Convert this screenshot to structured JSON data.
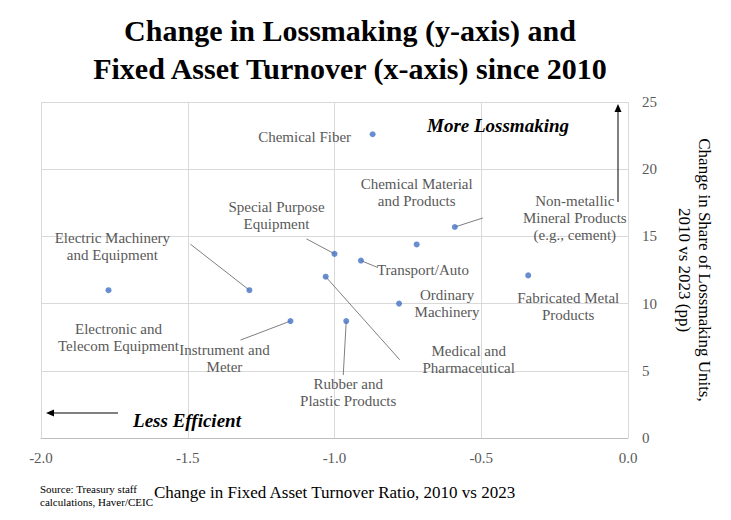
{
  "chart_data": {
    "type": "scatter",
    "title": "Change in Lossmaking (y-axis) and\nFixed Asset Turnover (x-axis) since 2010",
    "x_label": "Change in Fixed Asset Turnover Ratio, 2010 vs 2023",
    "y_label": "Change in Share of Lossmaking Units,\n2010 vs 2023 (pp)",
    "point_labels": [
      "Chemical Fiber",
      "Chemical Material\nand Products",
      "Non-metallic\nMineral Products\n(e.g., cement)",
      "Special Purpose\nEquipment",
      "Transport/Auto",
      "Fabricated Metal\nProducts",
      "Electric Machinery\nand Equipment",
      "Electronic and\nTelecom Equipment",
      "Medical and\nPharmaceutical",
      "Ordinary\nMachinery",
      "Instrument and\nMeter",
      "Rubber and\nPlastic Products"
    ],
    "x": [
      -0.87,
      -0.72,
      -0.59,
      -1.0,
      -0.91,
      -0.34,
      -1.29,
      -1.77,
      -1.03,
      -0.78,
      -1.15,
      -0.96
    ],
    "values": [
      22.6,
      14.4,
      15.7,
      13.7,
      13.2,
      12.1,
      11.0,
      11.0,
      12.0,
      10.0,
      8.7,
      8.7
    ],
    "color": "#4472c4",
    "marker": "circle",
    "xlim": [
      -2.0,
      0.0
    ],
    "xticks": [
      {
        "value": -2.0,
        "label": "-2.0"
      },
      {
        "value": -1.5,
        "label": "-1.5"
      },
      {
        "value": -1.0,
        "label": "-1.0"
      },
      {
        "value": -0.5,
        "label": "-0.5"
      },
      {
        "value": 0.0,
        "label": "0.0"
      }
    ],
    "ylim": [
      0,
      25
    ],
    "yticks": [
      0,
      5,
      10,
      15,
      20,
      25
    ],
    "grid": true,
    "annotations": [
      {
        "text": "More Lossmaking"
      },
      {
        "text": "Less Efficient"
      }
    ],
    "source": "Source: Treasury staff\ncalculations, Haver/CEIC"
  }
}
